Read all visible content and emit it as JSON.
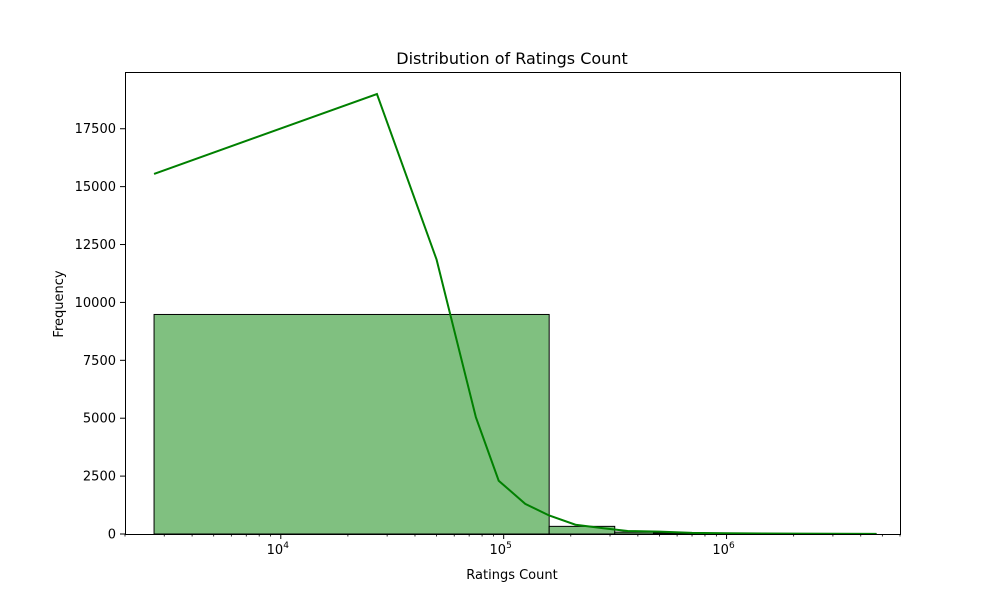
{
  "chart_data": {
    "type": "bar",
    "title": "Distribution of Ratings Count",
    "xlabel": "Ratings Count",
    "ylabel": "Frequency",
    "x_scale": "log",
    "xlim": [
      2000,
      6000000
    ],
    "ylim": [
      0,
      19950
    ],
    "grid": false,
    "x_major_ticks": [
      {
        "value": 10000,
        "base": "10",
        "exp": "4"
      },
      {
        "value": 100000,
        "base": "10",
        "exp": "5"
      },
      {
        "value": 1000000,
        "base": "10",
        "exp": "6"
      }
    ],
    "y_ticks": [
      0,
      2500,
      5000,
      7500,
      10000,
      12500,
      15000,
      17500
    ],
    "histogram_bins": [
      {
        "x0": 2700,
        "x1": 160000,
        "count": 9480
      },
      {
        "x0": 160000,
        "x1": 315000,
        "count": 330
      },
      {
        "x0": 315000,
        "x1": 470000,
        "count": 80
      },
      {
        "x0": 470000,
        "x1": 625000,
        "count": 45
      },
      {
        "x0": 625000,
        "x1": 780000,
        "count": 20
      },
      {
        "x0": 780000,
        "x1": 935000,
        "count": 12
      },
      {
        "x0": 935000,
        "x1": 1090000,
        "count": 8
      },
      {
        "x0": 1090000,
        "x1": 1245000,
        "count": 5
      },
      {
        "x0": 1245000,
        "x1": 1400000,
        "count": 4
      },
      {
        "x0": 1400000,
        "x1": 1555000,
        "count": 3
      },
      {
        "x0": 1555000,
        "x1": 1710000,
        "count": 2
      },
      {
        "x0": 1710000,
        "x1": 4700000,
        "count": 1
      }
    ],
    "kde_line": {
      "x": [
        2700,
        27000,
        50000,
        75000,
        95000,
        125000,
        160000,
        210000,
        280000,
        360000,
        500000,
        700000,
        1000000,
        2000000,
        4700000
      ],
      "y": [
        15550,
        19000,
        11850,
        5050,
        2300,
        1300,
        800,
        400,
        250,
        130,
        100,
        50,
        30,
        15,
        5
      ]
    },
    "colors": {
      "bar_fill": "#80c080",
      "bar_edge": "#000000",
      "kde": "#008000"
    }
  }
}
